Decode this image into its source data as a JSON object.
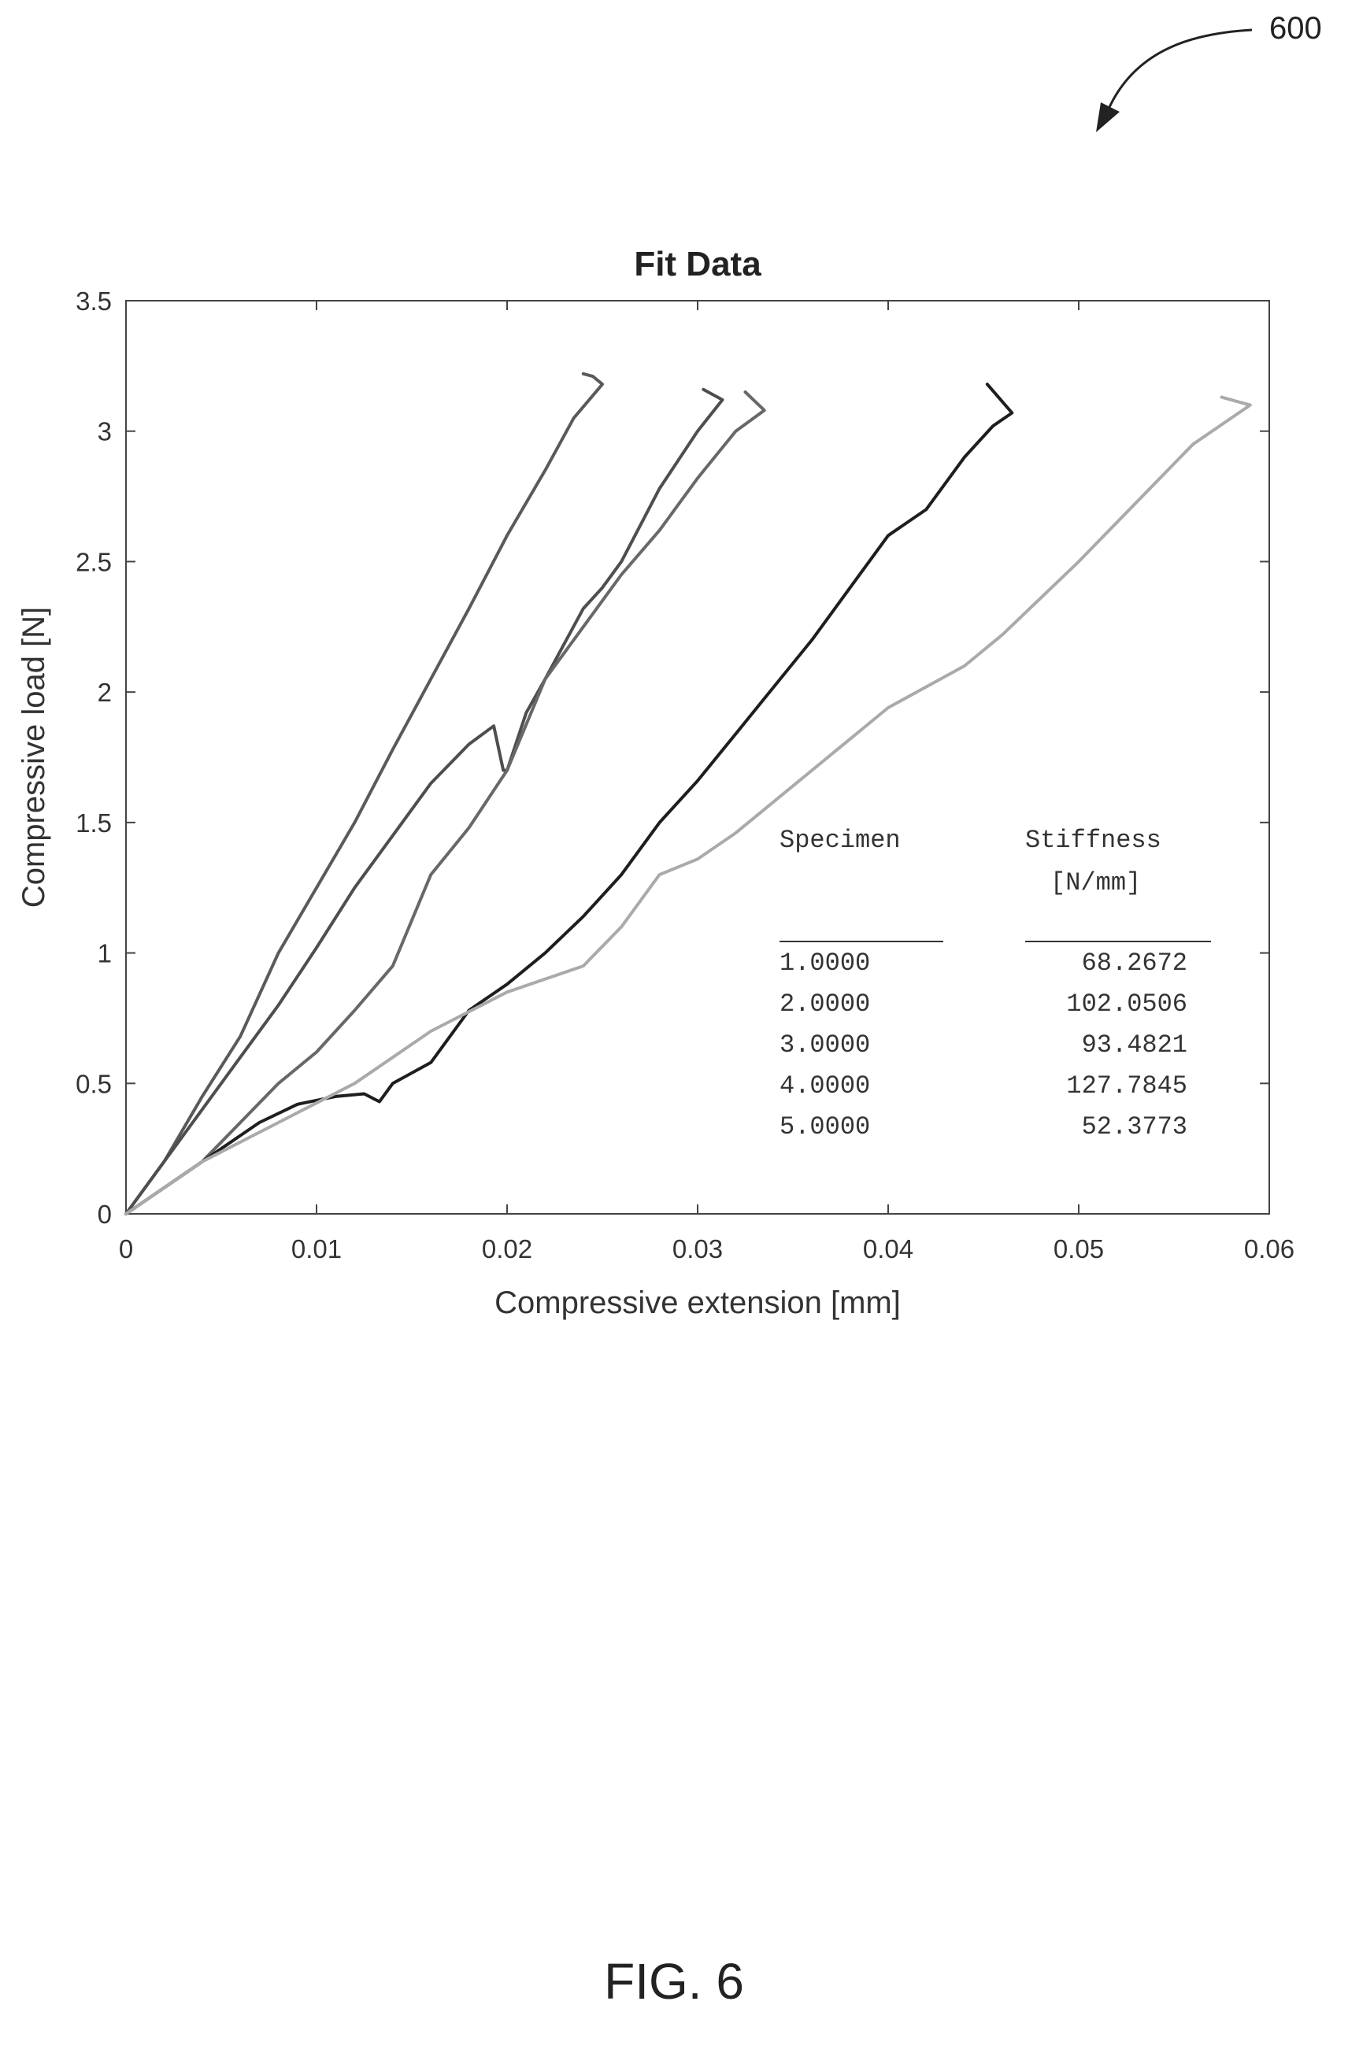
{
  "figure": {
    "reference_numeral": "600",
    "caption": "FIG. 6"
  },
  "chart_data": {
    "type": "line",
    "title": "Fit Data",
    "xlabel": "Compressive extension [mm]",
    "ylabel": "Compressive load [N]",
    "xlim": [
      0,
      0.06
    ],
    "ylim": [
      0,
      3.5
    ],
    "xticks": [
      0,
      0.01,
      0.02,
      0.03,
      0.04,
      0.05,
      0.06
    ],
    "xtick_labels": [
      "0",
      "0.01",
      "0.02",
      "0.03",
      "0.04",
      "0.05",
      "0.06"
    ],
    "yticks": [
      0,
      0.5,
      1,
      1.5,
      2,
      2.5,
      3,
      3.5
    ],
    "ytick_labels": [
      "0",
      "0.5",
      "1",
      "1.5",
      "2",
      "2.5",
      "3",
      "3.5"
    ],
    "grid": false,
    "series": [
      {
        "color": "#5a5a5a",
        "x": [
          0,
          0.002,
          0.004,
          0.006,
          0.008,
          0.01,
          0.012,
          0.014,
          0.016,
          0.018,
          0.02,
          0.022,
          0.0235,
          0.025,
          0.0245,
          0.024
        ],
        "y": [
          0,
          0.2,
          0.45,
          0.68,
          1.0,
          1.25,
          1.5,
          1.78,
          2.05,
          2.32,
          2.6,
          2.85,
          3.05,
          3.18,
          3.21,
          3.22
        ]
      },
      {
        "color": "#4e4e4e",
        "x": [
          0,
          0.002,
          0.004,
          0.006,
          0.008,
          0.01,
          0.012,
          0.014,
          0.016,
          0.018,
          0.0193,
          0.0198,
          0.02,
          0.021,
          0.022,
          0.024,
          0.025,
          0.026,
          0.028,
          0.03,
          0.0313,
          0.0303
        ],
        "y": [
          0,
          0.2,
          0.4,
          0.6,
          0.8,
          1.02,
          1.25,
          1.45,
          1.65,
          1.8,
          1.87,
          1.7,
          1.7,
          1.92,
          2.05,
          2.32,
          2.4,
          2.5,
          2.78,
          3.0,
          3.12,
          3.16
        ]
      },
      {
        "color": "#686868",
        "x": [
          0,
          0.002,
          0.004,
          0.006,
          0.008,
          0.01,
          0.012,
          0.014,
          0.016,
          0.018,
          0.02,
          0.022,
          0.024,
          0.026,
          0.028,
          0.03,
          0.032,
          0.0335,
          0.0325
        ],
        "y": [
          0,
          0.1,
          0.2,
          0.35,
          0.5,
          0.62,
          0.78,
          0.95,
          1.3,
          1.48,
          1.7,
          2.05,
          2.25,
          2.45,
          2.62,
          2.82,
          3.0,
          3.08,
          3.15
        ]
      },
      {
        "color": "#1e1e1e",
        "x": [
          0,
          0.003,
          0.005,
          0.007,
          0.009,
          0.011,
          0.0125,
          0.0133,
          0.014,
          0.016,
          0.018,
          0.02,
          0.022,
          0.024,
          0.026,
          0.028,
          0.03,
          0.032,
          0.034,
          0.036,
          0.038,
          0.04,
          0.042,
          0.044,
          0.0455,
          0.0465,
          0.0452
        ],
        "y": [
          0,
          0.15,
          0.25,
          0.35,
          0.42,
          0.45,
          0.46,
          0.43,
          0.5,
          0.58,
          0.78,
          0.88,
          1.0,
          1.14,
          1.3,
          1.5,
          1.66,
          1.84,
          2.02,
          2.2,
          2.4,
          2.6,
          2.7,
          2.9,
          3.02,
          3.07,
          3.18
        ]
      },
      {
        "color": "#aaaaaa",
        "x": [
          0,
          0.004,
          0.008,
          0.012,
          0.016,
          0.02,
          0.024,
          0.026,
          0.028,
          0.03,
          0.032,
          0.034,
          0.036,
          0.038,
          0.04,
          0.042,
          0.044,
          0.046,
          0.048,
          0.05,
          0.052,
          0.054,
          0.056,
          0.058,
          0.059,
          0.0575
        ],
        "y": [
          0,
          0.2,
          0.35,
          0.5,
          0.7,
          0.85,
          0.95,
          1.1,
          1.3,
          1.36,
          1.46,
          1.58,
          1.7,
          1.82,
          1.94,
          2.02,
          2.1,
          2.22,
          2.36,
          2.5,
          2.65,
          2.8,
          2.95,
          3.05,
          3.1,
          3.13
        ]
      }
    ],
    "annotation_table": {
      "headers": [
        "Specimen",
        "Stiffness"
      ],
      "units": [
        "",
        "[N/mm]"
      ],
      "rows": [
        [
          "1.0000",
          "68.2672"
        ],
        [
          "2.0000",
          "102.0506"
        ],
        [
          "3.0000",
          "93.4821"
        ],
        [
          "4.0000",
          "127.7845"
        ],
        [
          "5.0000",
          "52.3773"
        ]
      ]
    }
  }
}
